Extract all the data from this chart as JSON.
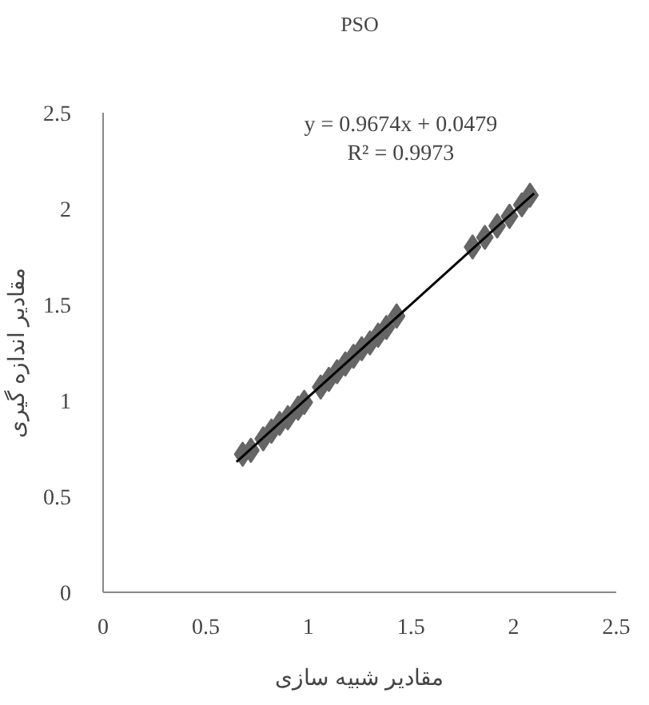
{
  "chart_data": {
    "type": "scatter",
    "title": "PSO",
    "xlabel": "مقادیر شبیه سازی",
    "ylabel": "مقادیر اندازه گیری",
    "annotations": [
      "y = 0.9674x + 0.0479",
      "R² = 0.9973"
    ],
    "xlim": [
      0,
      2.5
    ],
    "ylim": [
      0,
      2.5
    ],
    "xticks": [
      0,
      0.5,
      1,
      1.5,
      2,
      2.5
    ],
    "yticks": [
      0,
      0.5,
      1,
      1.5,
      2,
      2.5
    ],
    "grid": false,
    "series": [
      {
        "marker": "diamond",
        "color": "#666666",
        "x": [
          0.68,
          0.72,
          0.78,
          0.82,
          0.86,
          0.9,
          0.95,
          0.98,
          1.06,
          1.1,
          1.14,
          1.18,
          1.22,
          1.26,
          1.3,
          1.34,
          1.38,
          1.43,
          1.8,
          1.86,
          1.92,
          1.98,
          2.04,
          2.08
        ],
        "values": [
          0.72,
          0.74,
          0.8,
          0.84,
          0.88,
          0.91,
          0.96,
          0.99,
          1.07,
          1.11,
          1.15,
          1.19,
          1.23,
          1.27,
          1.3,
          1.34,
          1.38,
          1.44,
          1.8,
          1.85,
          1.91,
          1.96,
          2.02,
          2.07
        ]
      },
      {
        "type": "line",
        "color": "#000000",
        "line_style": "solid",
        "x": [
          0.65,
          2.1
        ],
        "values": [
          0.68,
          2.08
        ]
      }
    ]
  }
}
